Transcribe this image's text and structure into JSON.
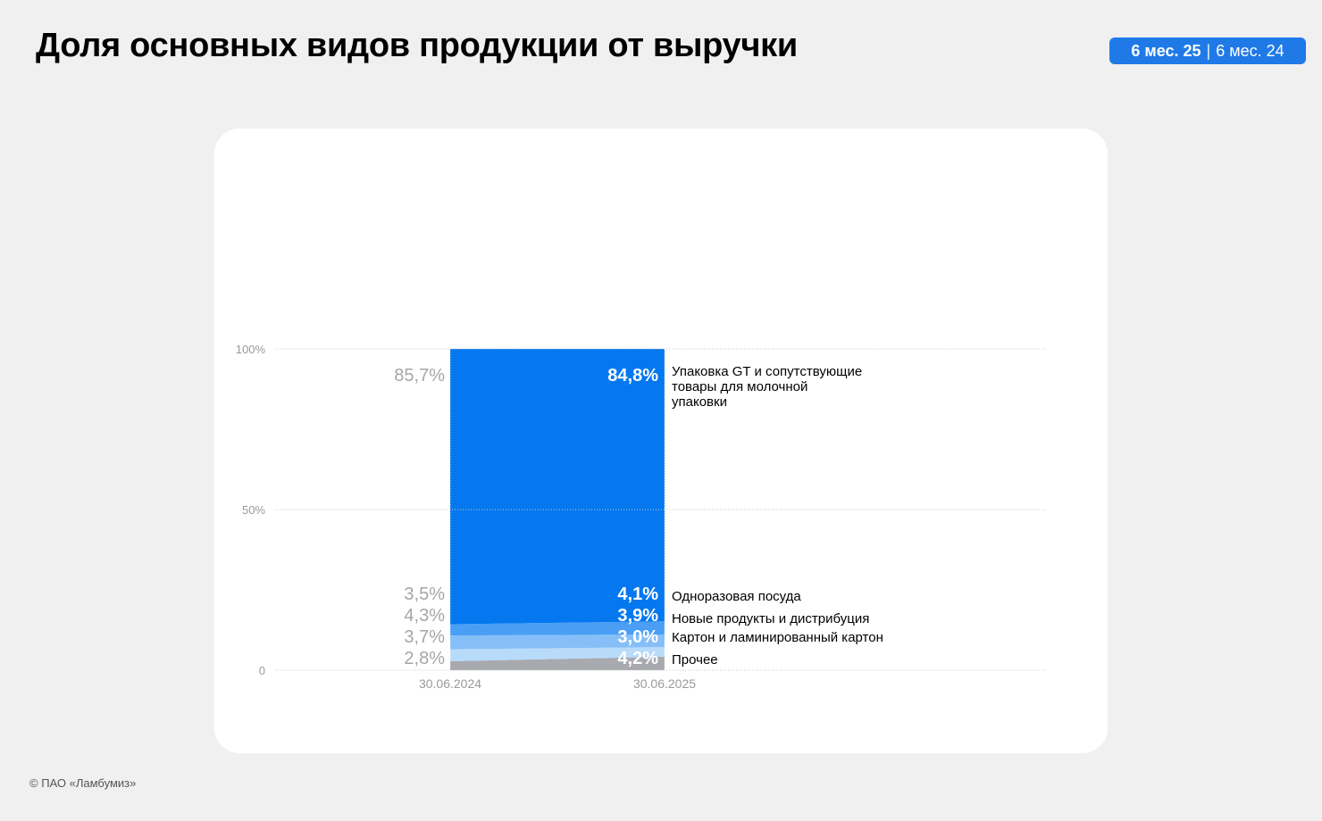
{
  "header": {
    "title": "Доля основных видов продукции от выручки",
    "period_active": "6 мес. 25",
    "period_separator": "|",
    "period_inactive": "6 мес. 24"
  },
  "footer": {
    "copyright": "© ПАО «Ламбумиз»"
  },
  "colors": {
    "accent": "#1f7ae8",
    "seg_main": "#0578f0",
    "seg_tableware": "#0578f0",
    "seg_new": "#4a9ff5",
    "seg_carton": "#86bff7",
    "seg_other_light": "#b9dbfa",
    "seg_other": "#a8aab0"
  },
  "chart_data": {
    "type": "area",
    "categories": [
      "30.06.2024",
      "30.06.2025"
    ],
    "ylim": [
      0,
      100
    ],
    "yticks": [
      {
        "value": 100,
        "label": "100%"
      },
      {
        "value": 50,
        "label": "50%"
      },
      {
        "value": 0,
        "label": "0"
      }
    ],
    "grid": true,
    "series": [
      {
        "name": "Прочее",
        "values": [
          2.8,
          4.2
        ],
        "labels": [
          "2,8%",
          "4,2%"
        ],
        "color": "#a8aab0"
      },
      {
        "name": "Картон и ламинированный картон",
        "values": [
          3.7,
          3.0
        ],
        "labels": [
          "3,7%",
          "3,0%"
        ],
        "color": "#b9dbfa"
      },
      {
        "name": "Новые продукты и дистрибуция",
        "values": [
          4.3,
          3.9
        ],
        "labels": [
          "4,3%",
          "3,9%"
        ],
        "color": "#86bff7"
      },
      {
        "name": "Одноразовая посуда",
        "values": [
          3.5,
          4.1
        ],
        "labels": [
          "3,5%",
          "4,1%"
        ],
        "color": "#4a9ff5"
      },
      {
        "name": "Упаковка GT и сопутствующие товары для молочной упаковки",
        "name_lines": [
          "Упаковка GT и сопутствующие",
          "товары для молочной",
          "упаковки"
        ],
        "values": [
          85.7,
          84.8
        ],
        "labels": [
          "85,7%",
          "84,8%"
        ],
        "color": "#0578f0"
      }
    ]
  }
}
